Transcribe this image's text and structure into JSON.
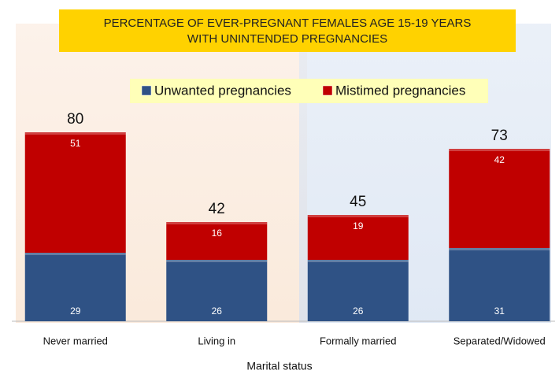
{
  "chart_data": {
    "type": "stacked-bar",
    "title": [
      "PERCENTAGE OF EVER-PREGNANT FEMALES AGE 15-19 YEARS",
      "WITH UNINTENDED PREGNANCIES"
    ],
    "x_label": "Marital status",
    "categories": [
      "Never married",
      "Living in",
      "Formally married",
      "Separated/Widowed"
    ],
    "series": [
      {
        "name": "Unwanted pregnancies",
        "color": "#2f5285",
        "values": [
          29,
          26,
          26,
          31
        ]
      },
      {
        "name": "Mistimed pregnancies",
        "color": "#c00000",
        "values": [
          51,
          16,
          19,
          42
        ]
      }
    ],
    "totals": [
      80,
      42,
      45,
      73
    ]
  }
}
